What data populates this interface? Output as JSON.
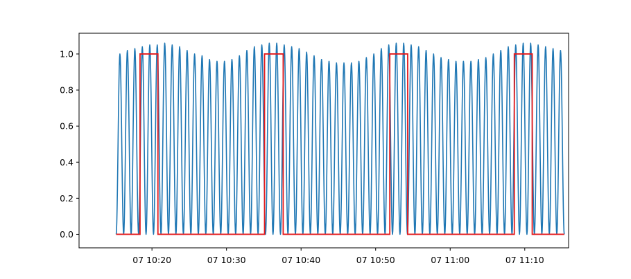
{
  "chart_data": {
    "type": "line",
    "title": "",
    "xlabel": "",
    "ylabel": "",
    "xlim_minutes": [
      10.22,
      75.88
    ],
    "ylim": [
      -0.075,
      1.115
    ],
    "grid": false,
    "x_time_base": "07 10:00",
    "x_ticks": [
      {
        "minute": 20,
        "label": "07 10:20"
      },
      {
        "minute": 30,
        "label": "07 10:30"
      },
      {
        "minute": 40,
        "label": "07 10:40"
      },
      {
        "minute": 50,
        "label": "07 10:50"
      },
      {
        "minute": 60,
        "label": "07 11:00"
      },
      {
        "minute": 70,
        "label": "07 11:10"
      }
    ],
    "y_ticks": [
      0.0,
      0.2,
      0.4,
      0.6,
      0.8,
      1.0
    ],
    "y_tick_labels": [
      "0.0",
      "0.2",
      "0.4",
      "0.6",
      "0.8",
      "1.0"
    ],
    "series": [
      {
        "color": "#1f77b4",
        "kind": "oscillation",
        "x_start_minute": 15.2,
        "x_end_minute": 75.3,
        "cycles": 60,
        "peaks": [
          1.0,
          1.02,
          1.03,
          1.04,
          1.05,
          1.05,
          1.06,
          1.05,
          1.04,
          1.02,
          1.0,
          0.99,
          0.97,
          0.96,
          0.96,
          0.97,
          0.99,
          1.02,
          1.04,
          1.05,
          1.06,
          1.06,
          1.05,
          1.04,
          1.03,
          1.01,
          0.99,
          0.97,
          0.96,
          0.95,
          0.95,
          0.95,
          0.96,
          0.98,
          1.0,
          1.03,
          1.05,
          1.06,
          1.06,
          1.05,
          1.04,
          1.02,
          1.0,
          0.98,
          0.97,
          0.96,
          0.96,
          0.96,
          0.97,
          0.98,
          1.0,
          1.02,
          1.04,
          1.05,
          1.06,
          1.06,
          1.05,
          1.04,
          1.03,
          1.02
        ],
        "trough": 0.0
      },
      {
        "color": "#e41a1c",
        "kind": "step",
        "points": [
          [
            15.2,
            0
          ],
          [
            18.4,
            0
          ],
          [
            18.4,
            1
          ],
          [
            20.8,
            1
          ],
          [
            20.8,
            0
          ],
          [
            35.1,
            0
          ],
          [
            35.1,
            1
          ],
          [
            37.6,
            1
          ],
          [
            37.6,
            0
          ],
          [
            51.9,
            0
          ],
          [
            51.9,
            1
          ],
          [
            54.3,
            1
          ],
          [
            54.3,
            0
          ],
          [
            68.6,
            0
          ],
          [
            68.6,
            1
          ],
          [
            71.0,
            1
          ],
          [
            71.0,
            0
          ],
          [
            75.3,
            0
          ]
        ]
      }
    ]
  }
}
